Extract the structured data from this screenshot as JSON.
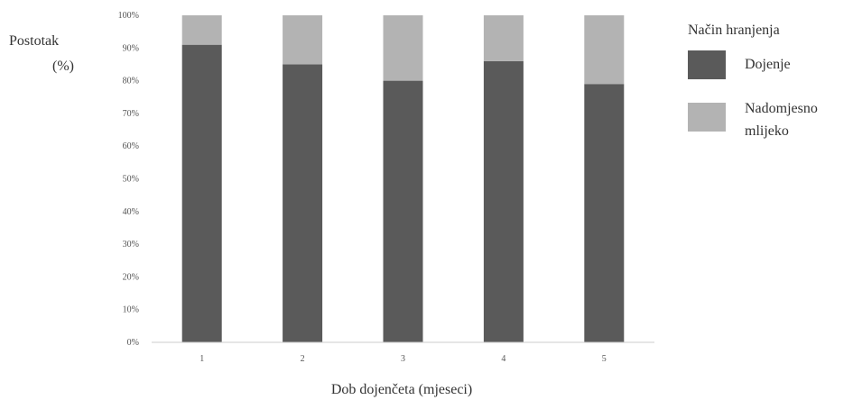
{
  "chart_data": {
    "type": "bar",
    "stacked": true,
    "categories": [
      "1",
      "2",
      "3",
      "4",
      "5"
    ],
    "series": [
      {
        "name": "Dojenje",
        "values": [
          91,
          85,
          80,
          86,
          79
        ],
        "color": "#5a5a5a"
      },
      {
        "name": "Nadomjesno mlijeko",
        "values": [
          9,
          15,
          20,
          14,
          21
        ],
        "color": "#b3b3b3"
      }
    ],
    "y_ticks": [
      "0%",
      "10%",
      "20%",
      "30%",
      "40%",
      "50%",
      "60%",
      "70%",
      "80%",
      "90%",
      "100%"
    ],
    "ylim": [
      0,
      100
    ],
    "ylabel_lines": [
      "Postotak",
      "(%)"
    ],
    "xlabel": "Dob dojenčeta (mjeseci)",
    "legend_title": "Način hranjenja",
    "legend_labels": [
      [
        "Dojenje"
      ],
      [
        "Nadomjesno",
        "mlijeko"
      ]
    ],
    "legend_position": "right",
    "grid": false
  }
}
